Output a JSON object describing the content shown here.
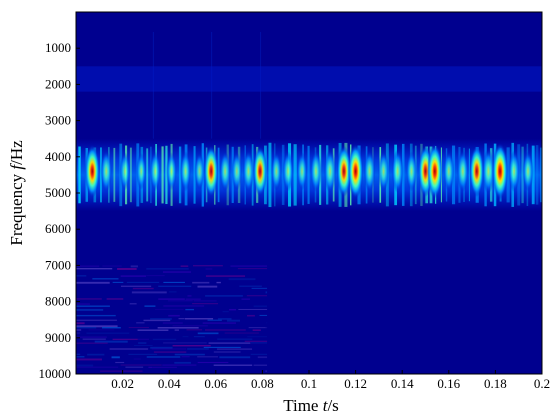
{
  "chart_data": {
    "type": "heatmap",
    "subtype": "spectrogram",
    "xlabel_parts": [
      "Time ",
      "t",
      "/s"
    ],
    "ylabel_parts": [
      "Frequency ",
      "f",
      "/Hz"
    ],
    "xlim": [
      0,
      0.2
    ],
    "ylim": [
      0,
      10000
    ],
    "y_inverted": true,
    "x_ticks": [
      0.02,
      0.04,
      0.06,
      0.08,
      0.1,
      0.12,
      0.14,
      0.16,
      0.18,
      0.2
    ],
    "x_tick_labels": [
      "0.02",
      "0.04",
      "0.06",
      "0.08",
      "0.1",
      "0.12",
      "0.14",
      "0.16",
      "0.18",
      "0.2"
    ],
    "y_ticks": [
      1000,
      2000,
      3000,
      4000,
      5000,
      6000,
      7000,
      8000,
      9000,
      10000
    ],
    "y_tick_labels": [
      "1000",
      "2000",
      "3000",
      "4000",
      "5000",
      "6000",
      "7000",
      "8000",
      "9000",
      "10000"
    ],
    "colormap": "jet",
    "background_color": "#00008f",
    "grid": false,
    "main_band_hz": [
      3500,
      5500
    ],
    "band_center_hz": 4400,
    "weak_band_hz": [
      1500,
      2200
    ],
    "noise_region": {
      "t": [
        0,
        0.082
      ],
      "f": [
        7000,
        10000
      ]
    },
    "energy_bursts": [
      {
        "t": 0.007,
        "intensity": 0.9
      },
      {
        "t": 0.013,
        "intensity": 0.55
      },
      {
        "t": 0.021,
        "intensity": 0.45
      },
      {
        "t": 0.028,
        "intensity": 0.4
      },
      {
        "t": 0.034,
        "intensity": 0.5
      },
      {
        "t": 0.041,
        "intensity": 0.45
      },
      {
        "t": 0.047,
        "intensity": 0.5
      },
      {
        "t": 0.053,
        "intensity": 0.4
      },
      {
        "t": 0.058,
        "intensity": 0.85
      },
      {
        "t": 0.064,
        "intensity": 0.5
      },
      {
        "t": 0.069,
        "intensity": 0.45
      },
      {
        "t": 0.074,
        "intensity": 0.55
      },
      {
        "t": 0.079,
        "intensity": 0.8
      },
      {
        "t": 0.086,
        "intensity": 0.45
      },
      {
        "t": 0.091,
        "intensity": 0.5
      },
      {
        "t": 0.097,
        "intensity": 0.45
      },
      {
        "t": 0.103,
        "intensity": 0.55
      },
      {
        "t": 0.109,
        "intensity": 0.6
      },
      {
        "t": 0.115,
        "intensity": 0.85
      },
      {
        "t": 0.12,
        "intensity": 0.95
      },
      {
        "t": 0.126,
        "intensity": 0.55
      },
      {
        "t": 0.132,
        "intensity": 0.5
      },
      {
        "t": 0.138,
        "intensity": 0.6
      },
      {
        "t": 0.144,
        "intensity": 0.5
      },
      {
        "t": 0.15,
        "intensity": 0.85
      },
      {
        "t": 0.154,
        "intensity": 0.95
      },
      {
        "t": 0.16,
        "intensity": 0.5
      },
      {
        "t": 0.166,
        "intensity": 0.55
      },
      {
        "t": 0.172,
        "intensity": 0.85
      },
      {
        "t": 0.177,
        "intensity": 0.65
      },
      {
        "t": 0.182,
        "intensity": 1.0
      },
      {
        "t": 0.188,
        "intensity": 0.55
      },
      {
        "t": 0.194,
        "intensity": 0.5
      }
    ]
  }
}
